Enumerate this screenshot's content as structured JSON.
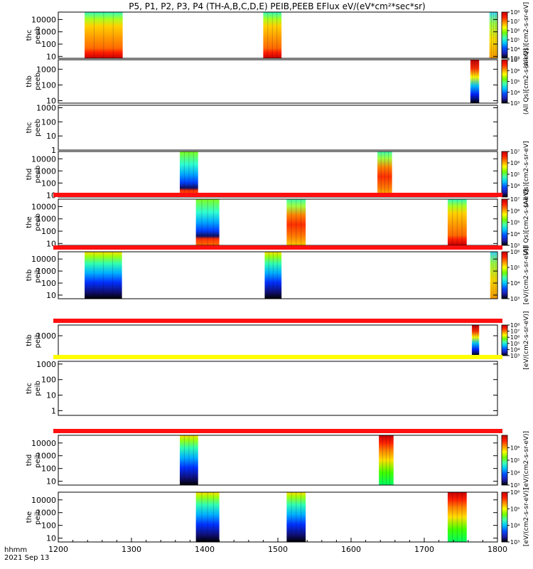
{
  "chart_data": {
    "type": "heatmap",
    "title": "P5, P1, P2, P3, P4 (TH-A,B,C,D,E) PEIB,PEEB EFlux eV/(eV*cm²*sec*sr)",
    "x_tick_labels": [
      "1200",
      "1300",
      "1400",
      "1500",
      "1600",
      "1700",
      "1800"
    ],
    "xlim": [
      1200,
      1800
    ],
    "x_ticks": [
      1200,
      1300,
      1400,
      1500,
      1600,
      1700,
      1800
    ],
    "bottom_label": "hhmm",
    "date_label": "2021 Sep 13",
    "y_scale": "log",
    "colormap": [
      "#000000",
      "#1e1eaf",
      "#0050ff",
      "#00c8ff",
      "#40ffb0",
      "#70ff00",
      "#ffff00",
      "#ff9000",
      "#ff2000",
      "#c80000"
    ],
    "panels": [
      {
        "label_line1": "thc",
        "label_line2": "peeb",
        "ylim": [
          7,
          40000
        ],
        "y_ticks": [
          10,
          100,
          1000,
          10000
        ],
        "y_tick_labels": [
          "10",
          "100",
          "1000",
          "10000"
        ],
        "blocks": [
          {
            "x0": 1236,
            "x1": 1288,
            "style": "peeb_hot"
          },
          {
            "x0": 1480,
            "x1": 1505,
            "style": "peeb_hot"
          },
          {
            "x0": 1789,
            "x1": 1800,
            "style": "edge"
          }
        ],
        "colorbar": true,
        "cb_range": [
          1000,
          100000000
        ],
        "cb_ticks": [
          1000,
          10000,
          100000,
          1000000,
          10000000,
          100000000
        ],
        "cb_tick_labels": [
          "10³",
          "10⁴",
          "10⁵",
          "10⁶",
          "10⁷",
          "10⁸"
        ],
        "cb_label": "(All Qs)[cm2-s-sr-eV]"
      },
      {
        "label_line1": "thb",
        "label_line2": "peeb",
        "ylim": [
          7,
          4000
        ],
        "y_ticks": [
          10,
          100,
          1000
        ],
        "y_tick_labels": [
          "10",
          "100",
          "1000"
        ],
        "blocks": [
          {
            "x0": 1763,
            "x1": 1775,
            "style": "stripe"
          }
        ],
        "colorbar": true,
        "cb_range": [
          1000,
          10000000
        ],
        "cb_ticks": [
          1000,
          10000,
          100000,
          1000000,
          10000000
        ],
        "cb_tick_labels": [
          "10³",
          "10⁴",
          "10⁵",
          "10⁶",
          "10⁷"
        ],
        "cb_label": "(All Qs)[cm2-s-sr-eV]"
      },
      {
        "label_line1": "thc",
        "label_line2": "peeb",
        "ylim": [
          1,
          1500
        ],
        "y_ticks": [
          1,
          10,
          100,
          1000
        ],
        "y_tick_labels": [
          "1",
          "10",
          "100",
          "1000"
        ],
        "blocks": [],
        "colorbar": false
      },
      {
        "label_line1": "thd",
        "label_line2": "peeb",
        "ylim": [
          7,
          40000
        ],
        "y_ticks": [
          10,
          100,
          1000,
          10000
        ],
        "y_tick_labels": [
          "10",
          "100",
          "1000",
          "10000"
        ],
        "blocks": [
          {
            "x0": 1366,
            "x1": 1391,
            "style": "peeb_cool"
          },
          {
            "x0": 1636,
            "x1": 1656,
            "style": "warm"
          }
        ],
        "colorbar": true,
        "cb_range": [
          1000,
          10000000
        ],
        "cb_ticks": [
          10000,
          100000,
          1000000,
          10000000
        ],
        "cb_tick_labels": [
          "10⁴",
          "10⁵",
          "10⁶",
          "10⁷"
        ],
        "cb_label": "(All Qs)[cm2-s-sr-eV]"
      },
      {
        "label_line1": "the",
        "label_line2": "peeb",
        "ylim": [
          7,
          40000
        ],
        "y_ticks": [
          10,
          100,
          1000,
          10000
        ],
        "y_tick_labels": [
          "10",
          "100",
          "1000",
          "10000"
        ],
        "blocks": [
          {
            "x0": 1388,
            "x1": 1420,
            "style": "peeb_cool"
          },
          {
            "x0": 1512,
            "x1": 1538,
            "style": "warm"
          },
          {
            "x0": 1732,
            "x1": 1758,
            "style": "peeb_hot"
          }
        ],
        "colorbar": true,
        "cb_range": [
          1000,
          10000000
        ],
        "cb_ticks": [
          1000,
          10000,
          100000,
          1000000,
          10000000
        ],
        "cb_tick_labels": [
          "10³",
          "10⁴",
          "10⁵",
          "10⁶",
          "10⁷"
        ],
        "cb_label": "(All Qs)[cm2-s-sr-eV]",
        "flag_color": "red"
      },
      {
        "label_line1": "thb",
        "label_line2": "peib",
        "ylim": [
          5,
          40000
        ],
        "y_ticks": [
          10,
          100,
          1000,
          10000
        ],
        "y_tick_labels": [
          "10",
          "100",
          "1000",
          "10000"
        ],
        "blocks": [
          {
            "x0": 1236,
            "x1": 1287,
            "style": "peib"
          },
          {
            "x0": 1482,
            "x1": 1505,
            "style": "peib"
          },
          {
            "x0": 1790,
            "x1": 1800,
            "style": "edge"
          }
        ],
        "colorbar": true,
        "cb_range": [
          1000,
          1000000
        ],
        "cb_ticks": [
          1000,
          10000,
          100000,
          1000000
        ],
        "cb_tick_labels": [
          "10³",
          "10⁴",
          "10⁵",
          "10⁶"
        ],
        "cb_label": "[eV/(cm2-s-sr-eV)]",
        "flag_color": "red"
      },
      {
        "label_line1": "thb",
        "label_line2": "peib",
        "ylim": [
          50,
          5000
        ],
        "y_ticks": [
          1000
        ],
        "y_tick_labels": [
          "1000"
        ],
        "blocks": [
          {
            "x0": 1765,
            "x1": 1775,
            "style": "stripe"
          }
        ],
        "colorbar": true,
        "cb_range": [
          1000,
          100000000
        ],
        "cb_ticks": [
          1000,
          10000,
          100000,
          1000000,
          10000000,
          100000000
        ],
        "cb_tick_labels": [
          "10³",
          "10⁴",
          "10⁵",
          "10⁶",
          "10⁷",
          "10⁸"
        ],
        "cb_label": "[eV/(cm2-s-sr-eV)]",
        "flag_color": "red"
      },
      {
        "label_line1": "thc",
        "label_line2": "peib",
        "ylim": [
          0.5,
          1500
        ],
        "y_ticks": [
          1,
          10,
          100,
          1000
        ],
        "y_tick_labels": [
          "1",
          "10",
          "100",
          "1000"
        ],
        "blocks": [],
        "colorbar": false,
        "flag_color": "yellow"
      },
      {
        "label_line1": "thd",
        "label_line2": "peib",
        "ylim": [
          5,
          40000
        ],
        "y_ticks": [
          10,
          100,
          1000,
          10000
        ],
        "y_tick_labels": [
          "10",
          "100",
          "1000",
          "10000"
        ],
        "blocks": [
          {
            "x0": 1366,
            "x1": 1391,
            "style": "peib"
          },
          {
            "x0": 1638,
            "x1": 1658,
            "style": "peib_warm"
          }
        ],
        "colorbar": true,
        "cb_range": [
          1000,
          10000000
        ],
        "cb_ticks": [
          1000,
          10000,
          100000,
          1000000
        ],
        "cb_tick_labels": [
          "10³",
          "10⁴",
          "10⁵",
          "10⁶"
        ],
        "cb_label": "[eV/(cm2-s-sr-eV)]",
        "flag_color": "red"
      },
      {
        "label_line1": "the",
        "label_line2": "peib",
        "ylim": [
          5,
          40000
        ],
        "y_ticks": [
          10,
          100,
          1000,
          10000
        ],
        "y_tick_labels": [
          "10",
          "100",
          "1000",
          "10000"
        ],
        "blocks": [
          {
            "x0": 1388,
            "x1": 1420,
            "style": "peib"
          },
          {
            "x0": 1512,
            "x1": 1538,
            "style": "peib"
          },
          {
            "x0": 1732,
            "x1": 1758,
            "style": "peib_warm"
          }
        ],
        "colorbar": true,
        "cb_range": [
          1000,
          1000000
        ],
        "cb_ticks": [
          1000,
          10000,
          100000,
          1000000
        ],
        "cb_tick_labels": [
          "10³",
          "10⁴",
          "10⁵",
          "10⁶"
        ],
        "cb_label": "[eV/(cm2-s-sr-eV)]"
      }
    ]
  }
}
